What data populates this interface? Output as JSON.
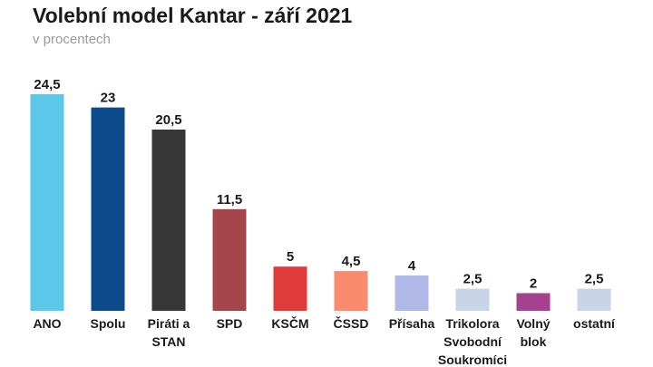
{
  "chart_data": {
    "type": "bar",
    "title": "Volební model Kantar - září 2021",
    "subtitle": "v procentech",
    "categories": [
      "ANO",
      "Spolu",
      "Piráti a STAN",
      "SPD",
      "KSČM",
      "ČSSD",
      "Přísaha",
      "Trikolora Svobodní Soukromíci",
      "Volný blok",
      "ostatní"
    ],
    "category_lines": [
      [
        "ANO"
      ],
      [
        "Spolu"
      ],
      [
        "Piráti a",
        "STAN"
      ],
      [
        "SPD"
      ],
      [
        "KSČM"
      ],
      [
        "ČSSD"
      ],
      [
        "Přísaha"
      ],
      [
        "Trikolora",
        "Svobodní",
        "Soukromíci"
      ],
      [
        "Volný",
        "blok"
      ],
      [
        "ostatní"
      ]
    ],
    "values": [
      24.5,
      23,
      20.5,
      11.5,
      5,
      4.5,
      4,
      2.5,
      2,
      2.5
    ],
    "value_labels": [
      "24,5",
      "23",
      "20,5",
      "11,5",
      "5",
      "4,5",
      "4",
      "2,5",
      "2",
      "2,5"
    ],
    "colors": [
      "#5bc8ea",
      "#0d4a8c",
      "#363636",
      "#a5464b",
      "#e03b3b",
      "#fb8a6e",
      "#b0b8e8",
      "#c8d4e8",
      "#a5418e",
      "#c8d4e8"
    ],
    "ylim": [
      0,
      24.5
    ],
    "grid": false,
    "legend": "none"
  }
}
